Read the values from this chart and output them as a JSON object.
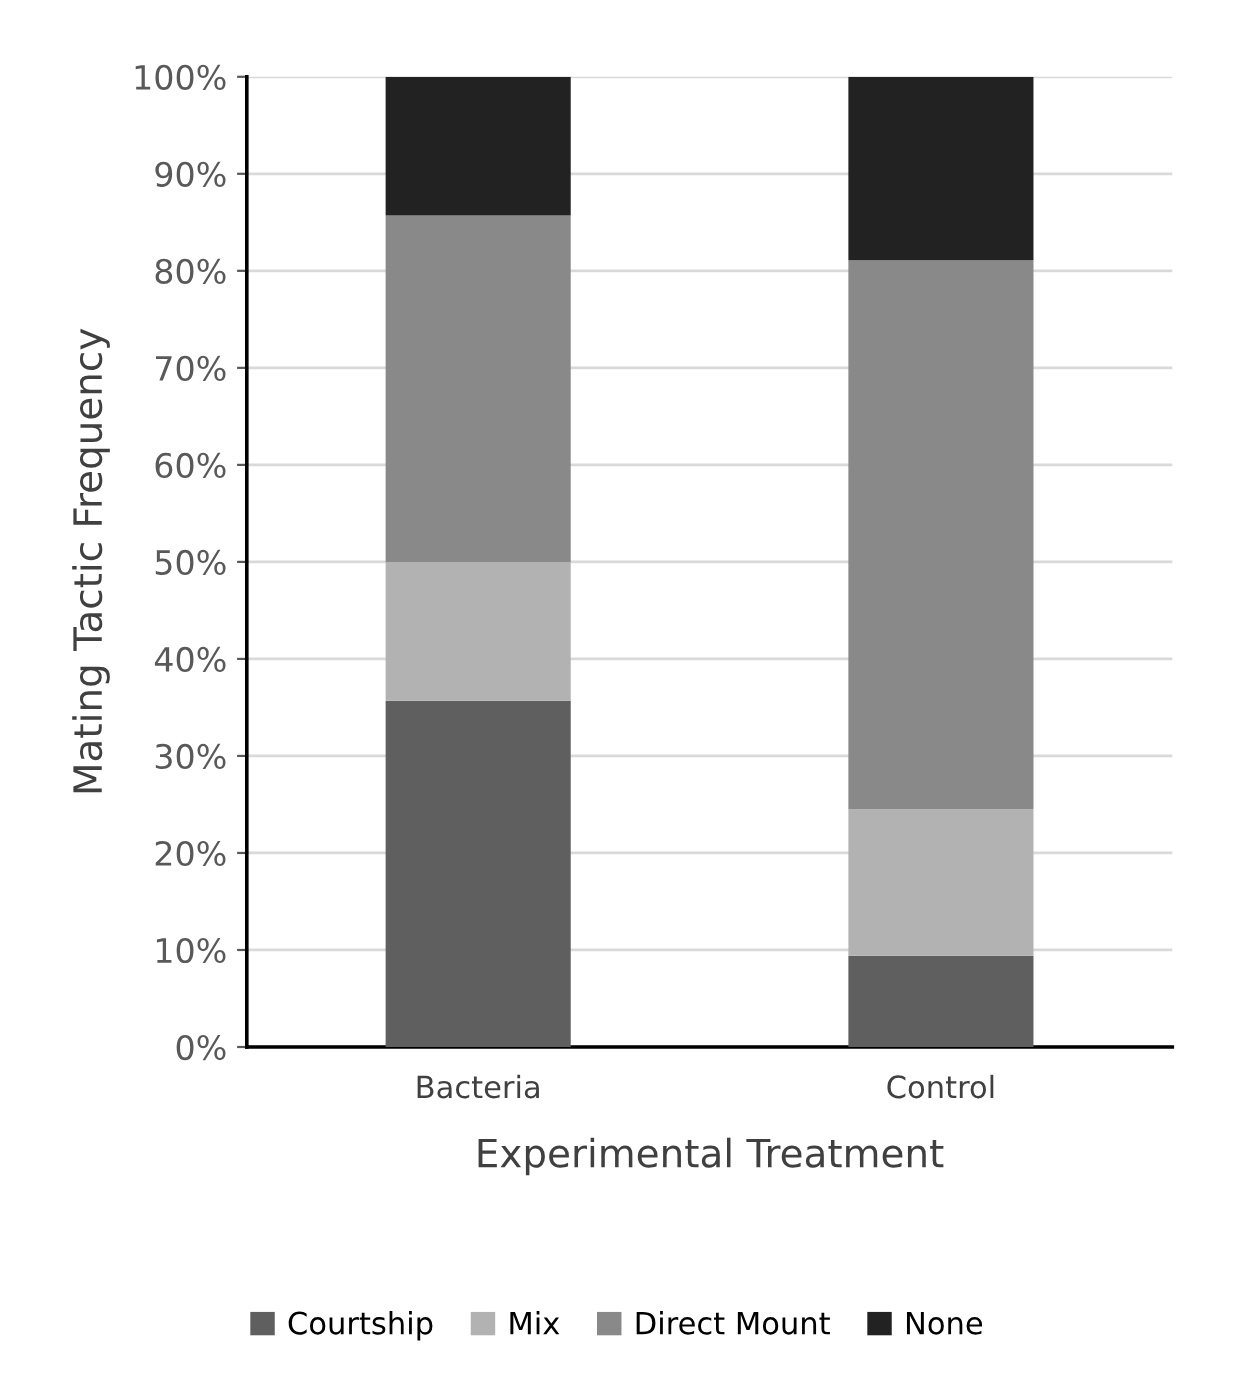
{
  "chart_data": {
    "type": "bar",
    "stacked": true,
    "xlabel": "Experimental Treatment",
    "ylabel": "Mating Tactic Frequency",
    "categories": [
      "Bacteria",
      "Control"
    ],
    "series": [
      {
        "name": "Courtship",
        "color": "#5f5f5f",
        "values": [
          35.7,
          9.4
        ]
      },
      {
        "name": "Mix",
        "color": "#b2b2b2",
        "values": [
          14.3,
          15.1
        ]
      },
      {
        "name": "Direct Mount",
        "color": "#898989",
        "values": [
          35.7,
          56.6
        ]
      },
      {
        "name": "None",
        "color": "#222222",
        "values": [
          14.3,
          18.9
        ]
      }
    ],
    "ylim": [
      0,
      100
    ],
    "yticks": [
      {
        "value": 0,
        "label": "0%"
      },
      {
        "value": 10,
        "label": "10%"
      },
      {
        "value": 20,
        "label": "20%"
      },
      {
        "value": 30,
        "label": "30%"
      },
      {
        "value": 40,
        "label": "40%"
      },
      {
        "value": 50,
        "label": "50%"
      },
      {
        "value": 60,
        "label": "60%"
      },
      {
        "value": 70,
        "label": "70%"
      },
      {
        "value": 80,
        "label": "80%"
      },
      {
        "value": 90,
        "label": "90%"
      },
      {
        "value": 100,
        "label": "100%"
      }
    ],
    "grid": "y",
    "legend": "bottom"
  }
}
